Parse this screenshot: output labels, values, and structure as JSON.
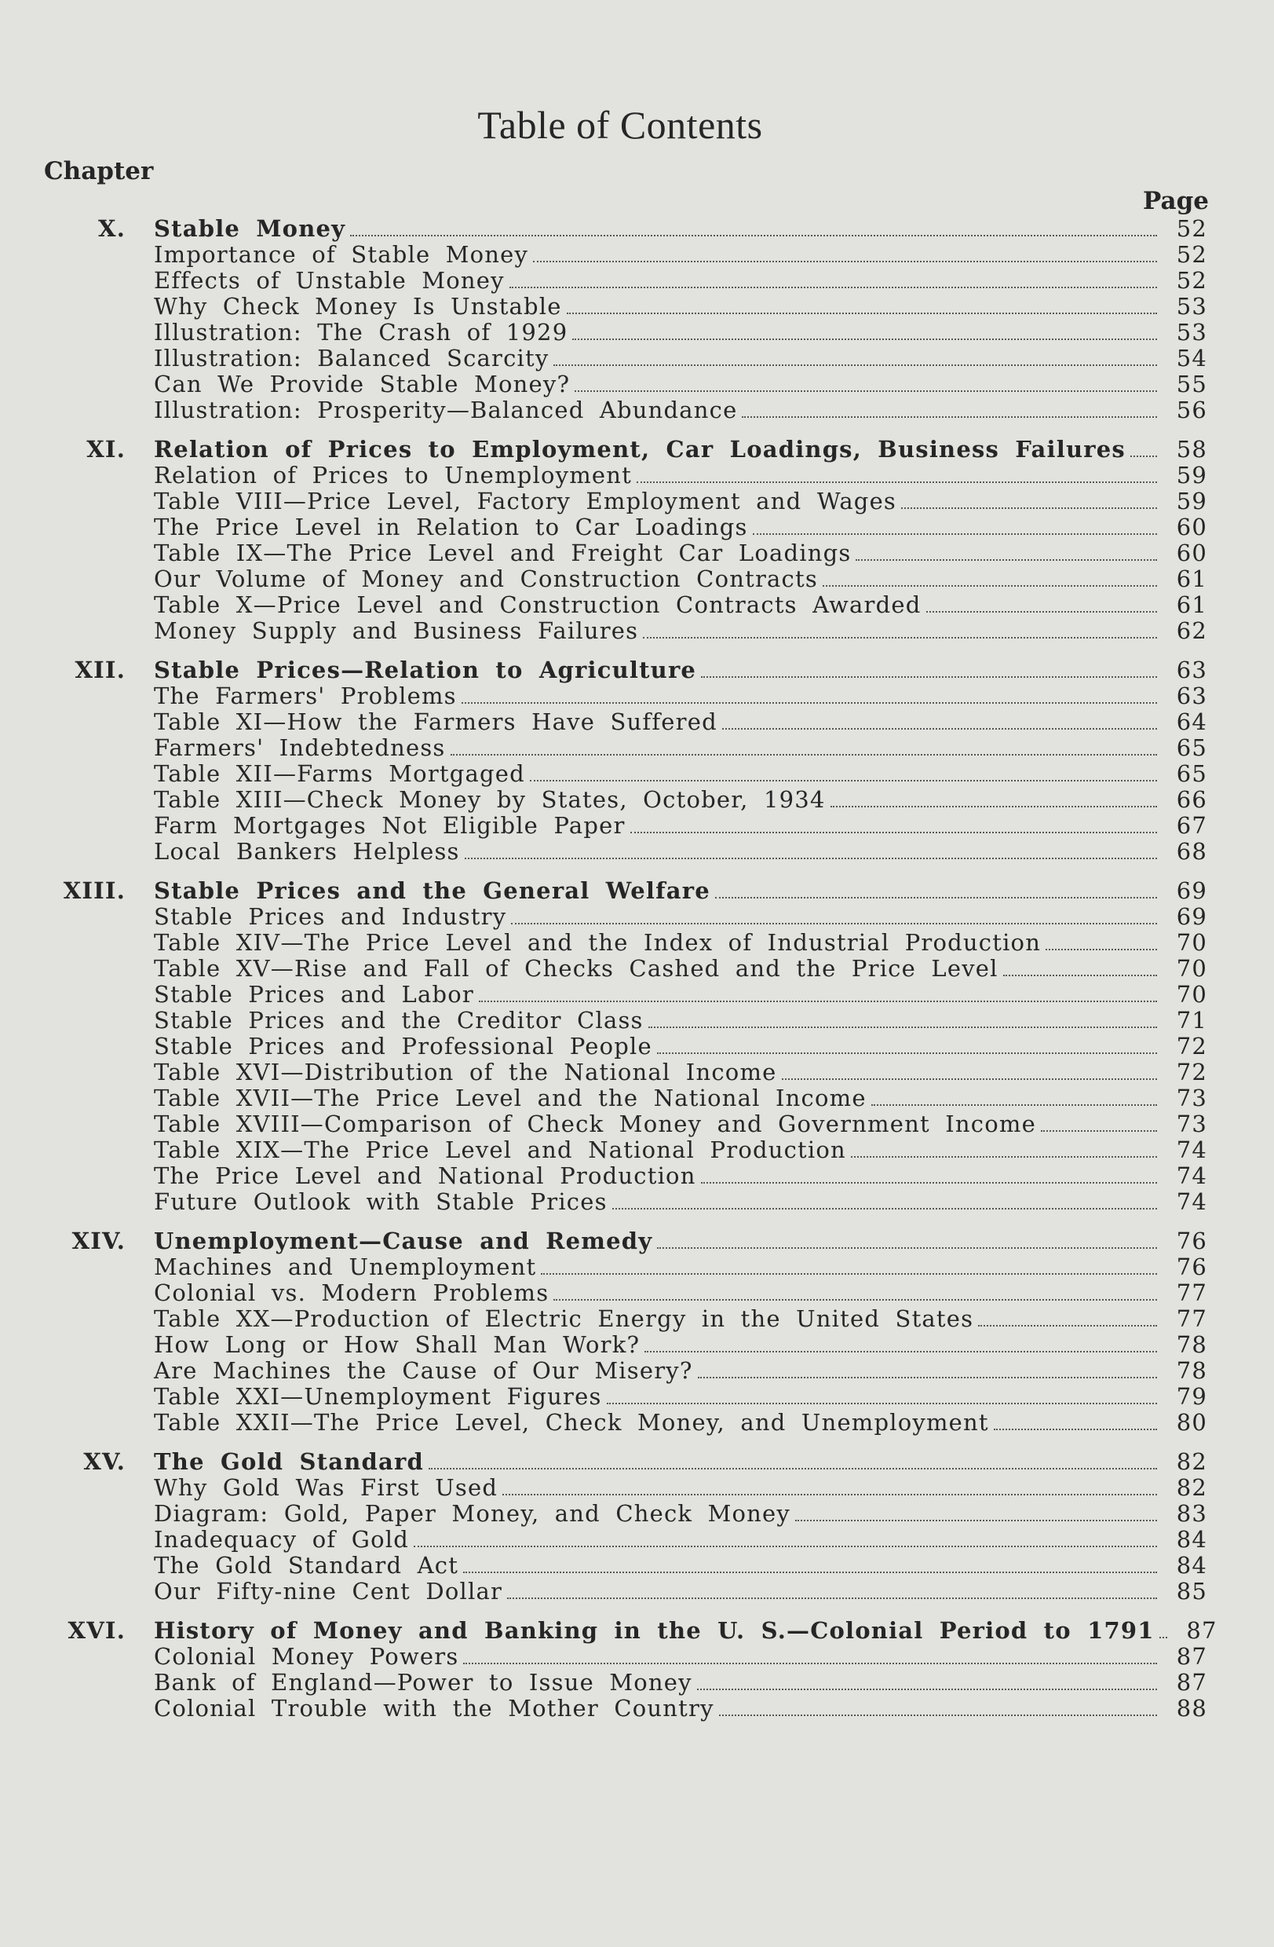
{
  "title": "Table of Contents",
  "chapter_label": "Chapter",
  "page_label": "Page",
  "chapters": [
    {
      "numeral": "X.",
      "title": "Stable Money",
      "page": "52",
      "entries": [
        {
          "title": "Importance of Stable Money",
          "page": "52"
        },
        {
          "title": "Effects of Unstable Money",
          "page": "52"
        },
        {
          "title": "Why Check Money Is Unstable",
          "page": "53"
        },
        {
          "title": "Illustration: The Crash of 1929",
          "page": "53"
        },
        {
          "title": "Illustration: Balanced Scarcity",
          "page": "54"
        },
        {
          "title": "Can We Provide Stable Money?",
          "page": "55"
        },
        {
          "title": "Illustration: Prosperity—Balanced Abundance",
          "page": "56"
        }
      ]
    },
    {
      "numeral": "XI.",
      "title": "Relation of Prices to Employment, Car Loadings, Business Failures",
      "page": "58",
      "entries": [
        {
          "title": "Relation of Prices to Unemployment",
          "page": "59"
        },
        {
          "title": "Table VIII—Price Level, Factory Employment and Wages",
          "page": "59"
        },
        {
          "title": "The Price Level in Relation to Car Loadings",
          "page": "60"
        },
        {
          "title": "Table IX—The Price Level and Freight Car Loadings",
          "page": "60"
        },
        {
          "title": "Our Volume of Money and Construction Contracts",
          "page": "61"
        },
        {
          "title": "Table X—Price Level and Construction Contracts Awarded",
          "page": "61"
        },
        {
          "title": "Money Supply and Business Failures",
          "page": "62"
        }
      ]
    },
    {
      "numeral": "XII.",
      "title": "Stable Prices—Relation to Agriculture",
      "page": "63",
      "entries": [
        {
          "title": "The Farmers' Problems",
          "page": "63"
        },
        {
          "title": "Table XI—How the Farmers Have Suffered",
          "page": "64"
        },
        {
          "title": "Farmers' Indebtedness",
          "page": "65"
        },
        {
          "title": "Table XII—Farms Mortgaged",
          "page": "65"
        },
        {
          "title": "Table XIII—Check Money by States, October, 1934",
          "page": "66"
        },
        {
          "title": "Farm Mortgages Not Eligible Paper",
          "page": "67"
        },
        {
          "title": "Local Bankers Helpless",
          "page": "68"
        }
      ]
    },
    {
      "numeral": "XIII.",
      "title": "Stable Prices and the General Welfare",
      "page": "69",
      "entries": [
        {
          "title": "Stable Prices and Industry",
          "page": "69"
        },
        {
          "title": "Table XIV—The Price Level and the Index of Industrial Production",
          "page": "70"
        },
        {
          "title": "Table XV—Rise and Fall of Checks Cashed and the Price Level",
          "page": "70"
        },
        {
          "title": "Stable Prices and Labor",
          "page": "70"
        },
        {
          "title": "Stable Prices and the Creditor Class",
          "page": "71"
        },
        {
          "title": "Stable Prices and Professional People",
          "page": "72"
        },
        {
          "title": "Table XVI—Distribution of the National Income",
          "page": "72"
        },
        {
          "title": "Table XVII—The Price Level and the National Income",
          "page": "73"
        },
        {
          "title": "Table XVIII—Comparison of Check Money and Government Income",
          "page": "73"
        },
        {
          "title": "Table XIX—The Price Level and National Production",
          "page": "74"
        },
        {
          "title": "The Price Level and National Production",
          "page": "74"
        },
        {
          "title": "Future Outlook with Stable Prices",
          "page": "74"
        }
      ]
    },
    {
      "numeral": "XIV.",
      "title": "Unemployment—Cause and Remedy",
      "page": "76",
      "entries": [
        {
          "title": "Machines and Unemployment",
          "page": "76"
        },
        {
          "title": "Colonial vs. Modern Problems",
          "page": "77"
        },
        {
          "title": "Table XX—Production of Electric Energy in the United States",
          "page": "77"
        },
        {
          "title": "How Long or How Shall Man Work?",
          "page": "78"
        },
        {
          "title": "Are Machines the Cause of Our Misery?",
          "page": "78"
        },
        {
          "title": "Table XXI—Unemployment Figures",
          "page": "79"
        },
        {
          "title": "Table XXII—The Price Level, Check Money, and Unemployment",
          "page": "80"
        }
      ]
    },
    {
      "numeral": "XV.",
      "title": "The Gold Standard",
      "page": "82",
      "entries": [
        {
          "title": "Why Gold Was First Used",
          "page": "82"
        },
        {
          "title": "Diagram: Gold, Paper Money, and Check Money",
          "page": "83"
        },
        {
          "title": "Inadequacy of Gold",
          "page": "84"
        },
        {
          "title": "The Gold Standard Act",
          "page": "84"
        },
        {
          "title": "Our Fifty-nine Cent Dollar",
          "page": "85"
        }
      ]
    },
    {
      "numeral": "XVI.",
      "title": "History of Money and Banking in the U. S.—Colonial Period to 1791",
      "page": "87",
      "entries": [
        {
          "title": "Colonial Money Powers",
          "page": "87"
        },
        {
          "title": "Bank of England—Power to Issue Money",
          "page": "87"
        },
        {
          "title": "Colonial Trouble with the Mother Country",
          "page": "88"
        }
      ]
    }
  ]
}
